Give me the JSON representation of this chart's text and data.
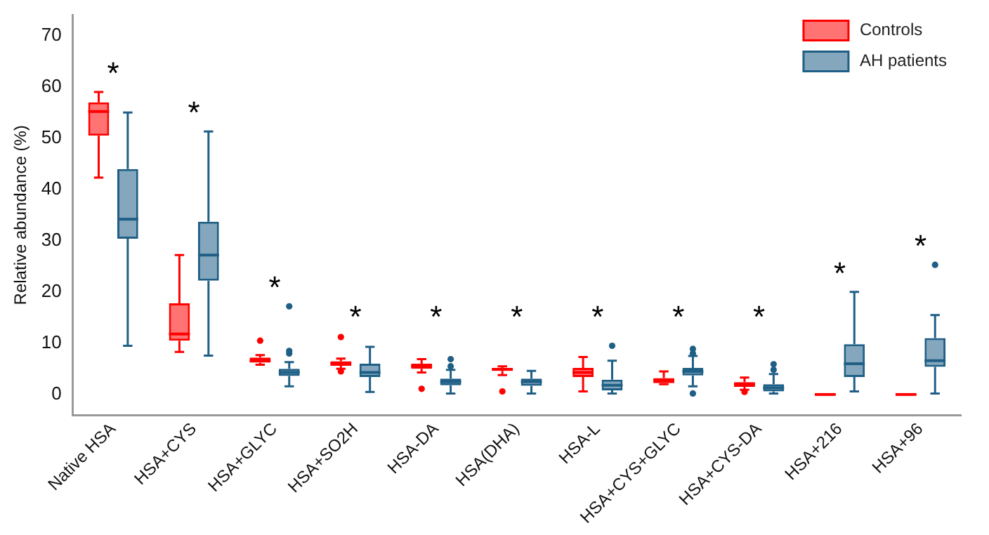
{
  "chart_data": {
    "type": "box",
    "ylabel": "Relative abundance (%)",
    "categories": [
      "Native HSA",
      "HSA+CYS",
      "HSA+GLYC",
      "HSA+SO2H",
      "HSA-DA",
      "HSA(DHA)",
      "HSA-L",
      "HSA+CYS+GLYC",
      "HSA+CYS-DA",
      "HSA+216",
      "HSA+96"
    ],
    "series": [
      {
        "name": "Controls",
        "color": "#ff0000",
        "boxes": [
          {
            "low": 42.3,
            "q1": 50.5,
            "median": 55.2,
            "q3": 57,
            "high": 59
          },
          {
            "low": 8.3,
            "q1": 10.5,
            "median": 11.8,
            "q3": 17.8,
            "high": 27.2
          },
          {
            "low": 5.8,
            "q1": 6.2,
            "median": 6.6,
            "q3": 7.2,
            "high": 7.7,
            "outliers": [
              10.5
            ]
          },
          {
            "low": 5.0,
            "q1": 5.6,
            "median": 6.0,
            "q3": 6.5,
            "high": 7.0,
            "outliers": [
              4.5,
              11.2
            ]
          },
          {
            "low": 4.3,
            "q1": 5.0,
            "median": 5.5,
            "q3": 6.0,
            "high": 6.9,
            "outliers": [
              1.1
            ]
          },
          {
            "low": 3.8,
            "q1": 4.6,
            "median": 4.9,
            "q3": 5.2,
            "high": 5.5,
            "outliers": [
              0.6
            ]
          },
          {
            "low": 0.6,
            "q1": 3.4,
            "median": 4.3,
            "q3": 5.2,
            "high": 7.3
          },
          {
            "low": 2.0,
            "q1": 2.2,
            "median": 2.7,
            "q3": 3.2,
            "high": 4.5
          },
          {
            "low": 0.9,
            "q1": 1.5,
            "median": 1.9,
            "q3": 2.4,
            "high": 3.3,
            "outliers": [
              0.5
            ]
          },
          {
            "low": 0,
            "q1": 0,
            "median": 0,
            "q3": 0,
            "high": 0
          },
          {
            "low": 0,
            "q1": 0,
            "median": 0,
            "q3": 0,
            "high": 0
          }
        ]
      },
      {
        "name": "AH patients",
        "color": "#1f5f86",
        "boxes": [
          {
            "low": 9.5,
            "q1": 30.4,
            "median": 34.2,
            "q3": 44,
            "high": 55
          },
          {
            "low": 7.6,
            "q1": 22.2,
            "median": 27.2,
            "q3": 33.7,
            "high": 51.3
          },
          {
            "low": 1.6,
            "q1": 3.6,
            "median": 4.3,
            "q3": 5.0,
            "high": 6.3,
            "outliers": [
              8.0,
              8.5,
              17.2
            ]
          },
          {
            "low": 0.5,
            "q1": 3.4,
            "median": 4.3,
            "q3": 6.0,
            "high": 9.3
          },
          {
            "low": 0.2,
            "q1": 1.8,
            "median": 2.5,
            "q3": 3.1,
            "high": 4.8,
            "outliers": [
              5.5,
              6.9
            ]
          },
          {
            "low": 0.2,
            "q1": 1.7,
            "median": 2.5,
            "q3": 3.1,
            "high": 4.6
          },
          {
            "low": 0.2,
            "q1": 0.8,
            "median": 1.8,
            "q3": 2.9,
            "high": 6.6,
            "outliers": [
              9.5
            ]
          },
          {
            "low": 1.6,
            "q1": 3.7,
            "median": 4.5,
            "q3": 5.2,
            "high": 7.5,
            "outliers": [
              0.2,
              8.0,
              8.9
            ]
          },
          {
            "low": 0.2,
            "q1": 0.6,
            "median": 1.3,
            "q3": 2.0,
            "high": 4.0,
            "outliers": [
              4.8,
              5.9
            ]
          },
          {
            "low": 0.6,
            "q1": 3.4,
            "median": 6.0,
            "q3": 9.8,
            "high": 20.0
          },
          {
            "low": 0.2,
            "q1": 5.4,
            "median": 6.6,
            "q3": 11.0,
            "high": 15.5,
            "outliers": [
              25.3
            ]
          }
        ]
      }
    ],
    "annotations": [
      "*",
      "*",
      "*",
      "*",
      "*",
      "*",
      "*",
      "*",
      "*",
      "*",
      "*"
    ],
    "ylim": [
      -4,
      74
    ],
    "yticks": [
      0,
      10,
      20,
      30,
      40,
      50,
      60,
      70
    ],
    "grid": false,
    "legend": "top right"
  }
}
